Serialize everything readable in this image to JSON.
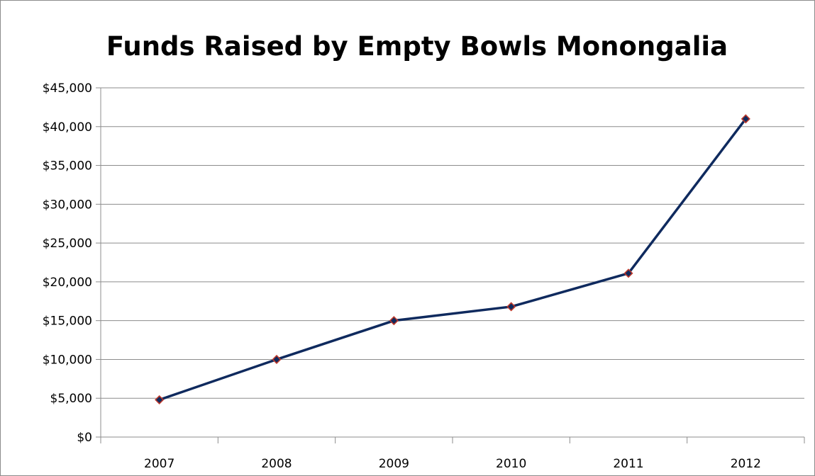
{
  "chart_data": {
    "type": "line",
    "title": "Funds Raised by Empty Bowls Monongalia",
    "xlabel": "",
    "ylabel": "",
    "categories": [
      "2007",
      "2008",
      "2009",
      "2010",
      "2011",
      "2012"
    ],
    "series": [
      {
        "values": [
          4800,
          10000,
          15000,
          16800,
          21100,
          41000
        ],
        "color": "#0f2a5e",
        "marker": "diamond",
        "marker_color": "#0f2a5e",
        "marker_edge_color": "#c0392b"
      }
    ],
    "ylim": [
      0,
      45000
    ],
    "yticks": [
      0,
      5000,
      10000,
      15000,
      20000,
      25000,
      30000,
      35000,
      40000,
      45000
    ],
    "ytick_labels": [
      "$0",
      "$5,000",
      "$10,000",
      "$15,000",
      "$20,000",
      "$25,000",
      "$30,000",
      "$35,000",
      "$40,000",
      "$45,000"
    ],
    "grid": "horizontal",
    "grid_color": "#8c8c8c",
    "legend": "none"
  }
}
